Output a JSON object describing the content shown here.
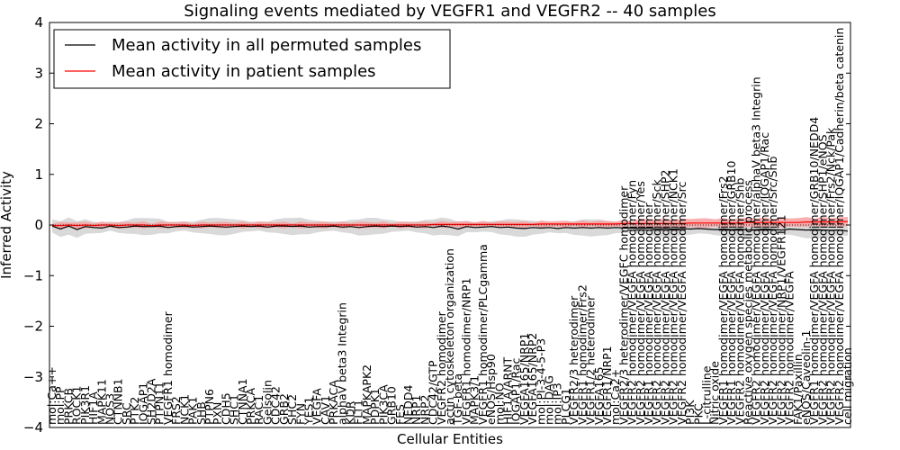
{
  "chart_data": {
    "type": "line",
    "title": "Signaling events mediated by VEGFR1 and VEGFR2 -- 40 samples",
    "xlabel": "Cellular Entities",
    "ylabel": "Inferred Activity",
    "ylim": [
      -4,
      4
    ],
    "yticks": [
      "4",
      "3",
      "2",
      "1",
      "0",
      "−1",
      "−2",
      "−3",
      "−4"
    ],
    "legend": {
      "position": "top-left",
      "entries": [
        {
          "label": "Mean activity in all permuted samples",
          "color": "#000000"
        },
        {
          "label": "Mean activity in patient samples",
          "color": "#ff0000"
        }
      ]
    },
    "colors": {
      "permuted_line": "#000000",
      "patient_line": "#ff0000",
      "permuted_band": "#d9d9d9",
      "patient_band": "#f4a0a0"
    },
    "categories": [
      "mol:Ca++",
      "mol:PP",
      "PRKCB",
      "ROCK1",
      "PIK3R1",
      "HIF1A",
      "MAPK11",
      "NOS3",
      "CTNNB1",
      "SRC",
      "PTK2",
      "IQGAP1",
      "SH2D2A",
      "PTPN11",
      "VEGFR1 homodimer",
      "FRS2",
      "NCK1",
      "PAK1",
      "SHB",
      "PTPN6",
      "PXN",
      "CDH5",
      "SHC1",
      "CTNNA1",
      "PRKCA",
      "RAC1",
      "Gelsolin",
      "CDC42",
      "GRB2",
      "SHC2",
      "FYN",
      "YES1",
      "VEGFA",
      "CAV1",
      "PRKACA",
      "alphaV beta3 Integrin",
      "KDR",
      "FLT1",
      "MAPKAPK2",
      "PDPK1",
      "PIK3CA",
      "GRB10",
      "FES",
      "NEDD4",
      "NRP1",
      "NRP2",
      "CDC42/GTP",
      "VEGFR2 homodimer",
      "actin cytoskeleton organization",
      "TGF-beta",
      "VEGFR1 homodimer/NRP1",
      "MAPK3/1",
      "VEGFR1 homodimer/PLCgamma",
      "eNOS/Hsp90",
      "mol:NO",
      "HIF1A/ARNT",
      "IQGAP1/Rac",
      "VEGFA165/NRP1",
      "VEGFA165/NRP2",
      "mol:PI-3-4-5-P3",
      "mol:DAG",
      "mol:IP3",
      "PLCG1",
      "VEGFR2/3 heterodimer",
      "VEGFR1 homodimer/Frs2",
      "VEGFR1/2 heterodimer",
      "VEGFA165",
      "VEGFR1/NRP1",
      "mol:Ca2+",
      "VEGFR2/3 heterodimer/VEGFC homodimer",
      "VEGFR2 homodimer/VEGFA homodimer/Fyn",
      "VEGFR2 homodimer/VEGFA homodimer/Yes",
      "VEGFR1 homodimer/VEGFA homodimer",
      "VEGFR2 homodimer/VEGFA homodimer/Sck",
      "VEGFR2 homodimer/VEGFA homodimer/SHP2",
      "VEGFR2 homodimer/VEGFA homodimer/NCK1",
      "VEGFR2 homodimer/VEGFA homodimer/Src",
      "PI3K",
      "PKC",
      "L-citrulline",
      "Nitric oxide",
      "VEGFR1 homodimer/VEGFA homodimer/Frs2",
      "VEGFR1 homodimer/VEGFA homodimer/GRB10",
      "VEGFR2 homodimer/VEGFA homodimer/Shb",
      "Reactive oxygen species metabolic process",
      "VEGFR2 homodimer/VEGFA homodimer/alphaV beta3 Integrin",
      "VEGFR2 homodimer/VEGFA homodimer/IQGAP1/Rac",
      "VEGFR2 homodimer/VEGFA homodimer/Src/Shb",
      "VEGFR2 homodimer/NRP1/VEGFR121",
      "VEGFR2 homodimer/VEGFA",
      "FAK1/Paxillin",
      "eNOS/Caveolin-1",
      "VEGFR1 homodimer/VEGFA homodimer/GRB10/NEDD4",
      "VEGFR2 homodimer/VEGFA homodimer/SHP1/eNOS",
      "VEGFR2 homodimer/VEGFA homodimer/Frs2/Nck/Pak",
      "VEGFR2 homodimer/VEGFA homodimer/IQGAP1/Cadherin/beta catenin",
      "cell migration"
    ],
    "series": [
      {
        "name": "Mean activity in all permuted samples",
        "values": [
          -0.02,
          -0.08,
          -0.02,
          -0.09,
          -0.03,
          -0.05,
          -0.06,
          -0.02,
          -0.05,
          -0.04,
          -0.02,
          -0.03,
          -0.03,
          -0.02,
          -0.05,
          -0.03,
          -0.02,
          -0.04,
          -0.03,
          -0.02,
          -0.03,
          -0.04,
          -0.03,
          -0.02,
          -0.03,
          -0.02,
          -0.04,
          -0.02,
          -0.02,
          -0.03,
          -0.02,
          -0.04,
          -0.03,
          -0.03,
          -0.02,
          -0.04,
          -0.03,
          -0.05,
          -0.03,
          -0.02,
          -0.03,
          -0.02,
          -0.03,
          -0.02,
          -0.04,
          -0.03,
          -0.05,
          -0.02,
          -0.04,
          -0.08,
          -0.03,
          -0.05,
          -0.04,
          -0.03,
          -0.05,
          -0.04,
          -0.06,
          -0.07,
          -0.05,
          -0.06,
          -0.05,
          -0.07,
          -0.05,
          -0.06,
          -0.05,
          -0.06,
          -0.05,
          -0.06,
          -0.05,
          -0.06,
          -0.06,
          -0.07,
          -0.06,
          -0.08,
          -0.07,
          -0.08,
          -0.07,
          -0.08,
          -0.07,
          -0.08,
          -0.09,
          -0.08,
          -0.09,
          -0.08,
          -0.1,
          -0.09,
          -0.08,
          -0.09,
          -0.1,
          -0.08,
          -0.09,
          -0.1,
          -0.09,
          -0.1,
          -0.11,
          -0.1,
          -0.12
        ]
      },
      {
        "name": "Mean activity in patient samples",
        "values": [
          -0.01,
          -0.01,
          0.0,
          -0.01,
          0.0,
          -0.01,
          0.0,
          0.0,
          -0.01,
          0.0,
          0.0,
          0.0,
          -0.01,
          0.0,
          0.0,
          0.0,
          0.0,
          -0.01,
          0.0,
          0.0,
          0.0,
          0.0,
          0.0,
          0.0,
          0.0,
          0.0,
          0.0,
          0.0,
          0.0,
          0.0,
          0.0,
          0.0,
          0.0,
          0.0,
          0.0,
          0.0,
          0.0,
          0.0,
          0.0,
          0.0,
          0.0,
          0.0,
          0.0,
          0.0,
          0.0,
          0.0,
          0.01,
          0.01,
          0.01,
          0.01,
          0.01,
          0.01,
          0.01,
          0.01,
          0.01,
          0.01,
          0.01,
          0.01,
          0.01,
          0.02,
          0.02,
          0.02,
          0.02,
          0.02,
          0.02,
          0.02,
          0.02,
          0.02,
          0.02,
          0.03,
          0.03,
          0.03,
          0.03,
          0.03,
          0.03,
          0.03,
          0.03,
          0.04,
          0.04,
          0.04,
          0.04,
          0.04,
          0.04,
          0.04,
          0.05,
          0.05,
          0.05,
          0.05,
          0.05,
          0.05,
          0.05,
          0.06,
          0.06,
          0.06,
          0.06,
          0.06,
          0.07
        ]
      }
    ],
    "grid": false
  }
}
